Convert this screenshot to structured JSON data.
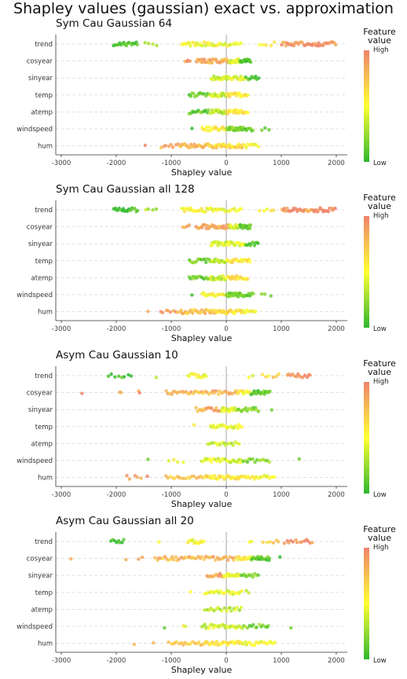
{
  "title": "Shapley values (gaussian) exact vs. approximation",
  "legend": {
    "title_line1": "Feature",
    "title_line2": "value",
    "high": "High",
    "low": "Low",
    "colors": [
      "#f0826a",
      "#ffff33",
      "#2eb82e"
    ]
  },
  "chart_data": [
    {
      "type": "scatter",
      "title": "Sym Cau Gaussian 64",
      "xlabel": "Shapley value",
      "xlim": [
        -3100,
        2200
      ],
      "xticks": [
        -3000,
        -2000,
        -1000,
        0,
        1000,
        2000
      ],
      "features": [
        "trend",
        "cosyear",
        "sinyear",
        "temp",
        "atemp",
        "windspeed",
        "hum"
      ],
      "groups": [
        {
          "feature": "trend",
          "ranges": [
            [
              -2050,
              -1600,
              18,
              0.05
            ],
            [
              -1500,
              -1200,
              4,
              0.3
            ],
            [
              -820,
              -100,
              30,
              0.5
            ],
            [
              -100,
              300,
              12,
              0.45
            ],
            [
              600,
              900,
              5,
              0.55
            ],
            [
              1000,
              2000,
              40,
              0.92
            ]
          ]
        },
        {
          "feature": "cosyear",
          "ranges": [
            [
              -750,
              -650,
              4,
              0.9
            ],
            [
              -550,
              50,
              30,
              0.85
            ],
            [
              50,
              250,
              18,
              0.4
            ],
            [
              250,
              450,
              18,
              0.1
            ]
          ]
        },
        {
          "feature": "sinyear",
          "ranges": [
            [
              -280,
              50,
              22,
              0.4
            ],
            [
              50,
              350,
              16,
              0.45
            ],
            [
              350,
              600,
              10,
              0.1
            ]
          ]
        },
        {
          "feature": "temp",
          "ranges": [
            [
              -680,
              -300,
              14,
              0.15
            ],
            [
              -300,
              0,
              18,
              0.35
            ],
            [
              0,
              400,
              22,
              0.6
            ]
          ]
        },
        {
          "feature": "atemp",
          "ranges": [
            [
              -680,
              -300,
              14,
              0.15
            ],
            [
              -300,
              0,
              18,
              0.35
            ],
            [
              0,
              400,
              22,
              0.6
            ]
          ]
        },
        {
          "feature": "windspeed",
          "ranges": [
            [
              -650,
              -600,
              1,
              0.1
            ],
            [
              -450,
              0,
              20,
              0.55
            ],
            [
              0,
              300,
              28,
              0.2
            ],
            [
              300,
              500,
              10,
              0.15
            ],
            [
              600,
              850,
              3,
              0.1
            ]
          ]
        },
        {
          "feature": "hum",
          "ranges": [
            [
              -1500,
              -1450,
              1,
              0.95
            ],
            [
              -1200,
              -850,
              8,
              0.85
            ],
            [
              -850,
              -200,
              30,
              0.75
            ],
            [
              -200,
              300,
              30,
              0.65
            ],
            [
              300,
              600,
              10,
              0.5
            ]
          ]
        }
      ]
    },
    {
      "type": "scatter",
      "title": "Sym Cau Gaussian all 128",
      "xlabel": "Shapley value",
      "xlim": [
        -3100,
        2200
      ],
      "xticks": [
        -3000,
        -2000,
        -1000,
        0,
        1000,
        2000
      ],
      "features": [
        "trend",
        "cosyear",
        "sinyear",
        "temp",
        "atemp",
        "windspeed",
        "hum"
      ],
      "groups": [
        {
          "feature": "trend",
          "ranges": [
            [
              -2050,
              -1600,
              18,
              0.05
            ],
            [
              -1500,
              -1200,
              4,
              0.3
            ],
            [
              -820,
              -100,
              30,
              0.5
            ],
            [
              -100,
              300,
              12,
              0.45
            ],
            [
              600,
              900,
              5,
              0.55
            ],
            [
              1000,
              2000,
              40,
              0.92
            ]
          ]
        },
        {
          "feature": "cosyear",
          "ranges": [
            [
              -800,
              -650,
              4,
              0.9
            ],
            [
              -550,
              50,
              30,
              0.85
            ],
            [
              50,
              250,
              18,
              0.4
            ],
            [
              250,
              450,
              18,
              0.1
            ]
          ]
        },
        {
          "feature": "sinyear",
          "ranges": [
            [
              -280,
              50,
              22,
              0.4
            ],
            [
              50,
              350,
              16,
              0.45
            ],
            [
              350,
              600,
              10,
              0.1
            ]
          ]
        },
        {
          "feature": "temp",
          "ranges": [
            [
              -680,
              -300,
              14,
              0.15
            ],
            [
              -300,
              0,
              18,
              0.35
            ],
            [
              0,
              450,
              22,
              0.6
            ]
          ]
        },
        {
          "feature": "atemp",
          "ranges": [
            [
              -680,
              -300,
              14,
              0.15
            ],
            [
              -300,
              0,
              18,
              0.35
            ],
            [
              0,
              400,
              22,
              0.6
            ]
          ]
        },
        {
          "feature": "windspeed",
          "ranges": [
            [
              -650,
              -600,
              1,
              0.1
            ],
            [
              -450,
              0,
              20,
              0.55
            ],
            [
              0,
              300,
              28,
              0.2
            ],
            [
              300,
              500,
              10,
              0.15
            ],
            [
              600,
              850,
              3,
              0.1
            ]
          ]
        },
        {
          "feature": "hum",
          "ranges": [
            [
              -1450,
              -1400,
              1,
              0.95
            ],
            [
              -1200,
              -850,
              8,
              0.85
            ],
            [
              -850,
              -200,
              30,
              0.75
            ],
            [
              -200,
              300,
              30,
              0.65
            ],
            [
              300,
              550,
              10,
              0.5
            ]
          ]
        }
      ]
    },
    {
      "type": "scatter",
      "title": "Asym Cau Gaussian 10",
      "xlabel": "Shapley value",
      "xlim": [
        -3100,
        2200
      ],
      "xticks": [
        -3000,
        -2000,
        -1000,
        0,
        1000,
        2000
      ],
      "features": [
        "trend",
        "cosyear",
        "sinyear",
        "temp",
        "atemp",
        "windspeed",
        "hum"
      ],
      "groups": [
        {
          "feature": "trend",
          "ranges": [
            [
              -2150,
              -1700,
              8,
              0.05
            ],
            [
              -1300,
              -1250,
              1,
              0.4
            ],
            [
              -700,
              -350,
              14,
              0.5
            ],
            [
              400,
              500,
              2,
              0.5
            ],
            [
              650,
              1000,
              6,
              0.65
            ],
            [
              1100,
              1550,
              14,
              0.95
            ]
          ]
        },
        {
          "feature": "cosyear",
          "ranges": [
            [
              -2650,
              -2600,
              1,
              0.95
            ],
            [
              -1950,
              -1900,
              2,
              0.9
            ],
            [
              -1600,
              -1550,
              2,
              0.9
            ],
            [
              -1100,
              200,
              40,
              0.8
            ],
            [
              200,
              450,
              12,
              0.55
            ],
            [
              450,
              800,
              20,
              0.1
            ]
          ]
        },
        {
          "feature": "sinyear",
          "ranges": [
            [
              -550,
              -100,
              16,
              0.85
            ],
            [
              -100,
              200,
              20,
              0.45
            ],
            [
              200,
              600,
              16,
              0.2
            ],
            [
              800,
              850,
              1,
              0.1
            ]
          ]
        },
        {
          "feature": "temp",
          "ranges": [
            [
              -620,
              -560,
              1,
              0.5
            ],
            [
              -300,
              300,
              24,
              0.45
            ]
          ]
        },
        {
          "feature": "atemp",
          "ranges": [
            [
              -350,
              250,
              18,
              0.35
            ]
          ]
        },
        {
          "feature": "windspeed",
          "ranges": [
            [
              -1450,
              -1400,
              1,
              0.1
            ],
            [
              -1100,
              -700,
              4,
              0.5
            ],
            [
              -450,
              300,
              30,
              0.4
            ],
            [
              300,
              800,
              14,
              0.2
            ],
            [
              1300,
              1350,
              1,
              0.1
            ]
          ]
        },
        {
          "feature": "hum",
          "ranges": [
            [
              -1850,
              -1400,
              6,
              0.9
            ],
            [
              -1100,
              -400,
              18,
              0.75
            ],
            [
              -400,
              300,
              32,
              0.6
            ],
            [
              300,
              900,
              20,
              0.5
            ]
          ]
        }
      ]
    },
    {
      "type": "scatter",
      "title": "Asym Cau Gaussian all 20",
      "xlabel": "Shapley value",
      "xlim": [
        -3100,
        2200
      ],
      "xticks": [
        -3000,
        -2000,
        -1000,
        0,
        1000,
        2000
      ],
      "features": [
        "trend",
        "cosyear",
        "sinyear",
        "temp",
        "atemp",
        "windspeed",
        "hum"
      ],
      "groups": [
        {
          "feature": "trend",
          "ranges": [
            [
              -2100,
              -1850,
              8,
              0.05
            ],
            [
              -1250,
              -1200,
              1,
              0.4
            ],
            [
              -700,
              -400,
              14,
              0.5
            ],
            [
              400,
              500,
              2,
              0.5
            ],
            [
              650,
              1000,
              6,
              0.65
            ],
            [
              1050,
              1600,
              14,
              0.95
            ]
          ]
        },
        {
          "feature": "cosyear",
          "ranges": [
            [
              -2850,
              -2800,
              1,
              0.95
            ],
            [
              -1850,
              -1800,
              1,
              0.9
            ],
            [
              -1600,
              -1500,
              2,
              0.9
            ],
            [
              -1300,
              200,
              44,
              0.8
            ],
            [
              200,
              450,
              12,
              0.55
            ],
            [
              450,
              800,
              20,
              0.1
            ],
            [
              950,
              1000,
              1,
              0.1
            ]
          ]
        },
        {
          "feature": "sinyear",
          "ranges": [
            [
              -350,
              -50,
              12,
              0.85
            ],
            [
              -50,
              250,
              18,
              0.45
            ],
            [
              250,
              600,
              12,
              0.2
            ]
          ]
        },
        {
          "feature": "temp",
          "ranges": [
            [
              -700,
              -600,
              1,
              0.5
            ],
            [
              -400,
              300,
              24,
              0.45
            ],
            [
              350,
              450,
              2,
              0.4
            ]
          ]
        },
        {
          "feature": "atemp",
          "ranges": [
            [
              -400,
              300,
              20,
              0.35
            ]
          ]
        },
        {
          "feature": "windspeed",
          "ranges": [
            [
              -1150,
              -1100,
              1,
              0.1
            ],
            [
              -800,
              -700,
              2,
              0.5
            ],
            [
              -450,
              300,
              30,
              0.4
            ],
            [
              300,
              800,
              14,
              0.2
            ],
            [
              1150,
              1200,
              1,
              0.1
            ]
          ]
        },
        {
          "feature": "hum",
          "ranges": [
            [
              -1700,
              -1650,
              1,
              0.9
            ],
            [
              -1350,
              -1300,
              1,
              0.85
            ],
            [
              -1050,
              -400,
              18,
              0.75
            ],
            [
              -400,
              300,
              32,
              0.6
            ],
            [
              300,
              900,
              20,
              0.5
            ]
          ]
        }
      ]
    }
  ]
}
